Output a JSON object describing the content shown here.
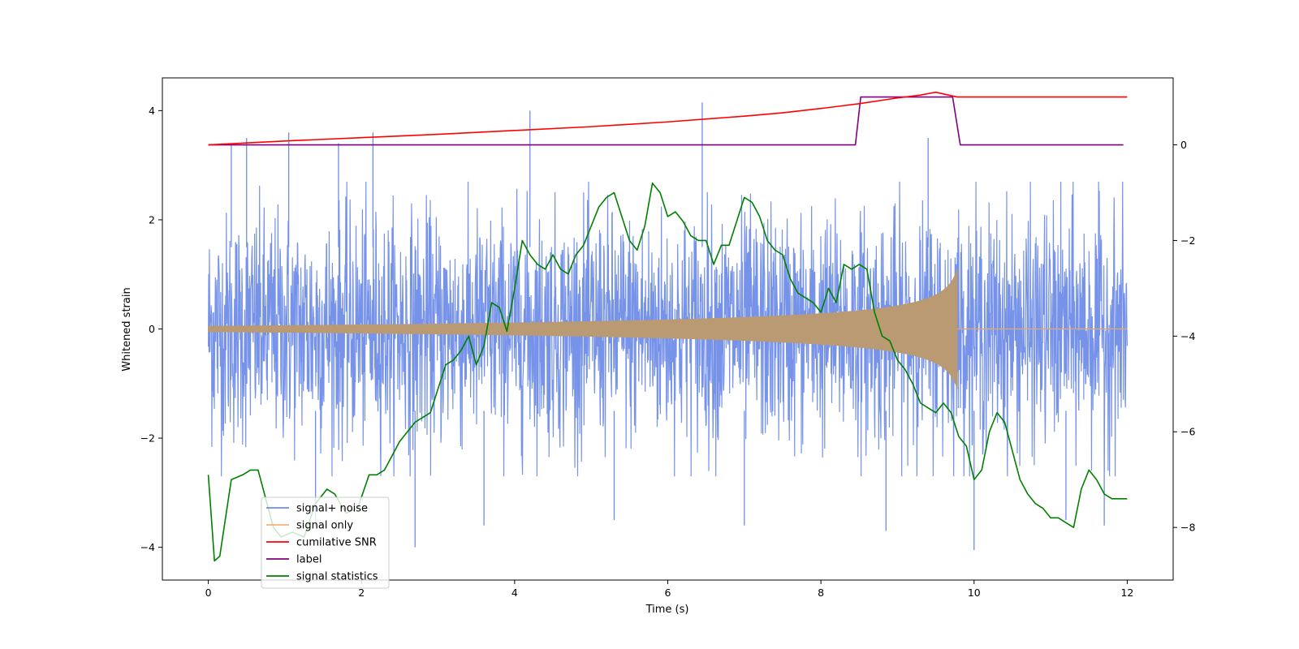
{
  "chart_data": {
    "type": "line",
    "title": "",
    "xlabel": "Time (s)",
    "ylabel": "Whitened strain",
    "y2label": "",
    "xlim": [
      -0.6,
      12.6
    ],
    "ylim": [
      -4.6,
      4.6
    ],
    "y2lim": [
      -9.1,
      1.4
    ],
    "xticks": [
      0,
      2,
      4,
      6,
      8,
      10,
      12
    ],
    "yticks": [
      -4,
      -2,
      0,
      2,
      4
    ],
    "y2ticks": [
      -8,
      -6,
      -4,
      -2,
      0
    ],
    "grid": false,
    "legend_position": "lower-left",
    "series": [
      {
        "name": "signal+ noise",
        "axis": "left",
        "color": "#6f8de8",
        "description": "dense noise band, roughly ±2.3 with spikes up to about ±4.1",
        "spikes": [
          {
            "x": 0.3,
            "y": 3.4
          },
          {
            "x": 0.5,
            "y": 3.5
          },
          {
            "x": 1.05,
            "y": 3.6
          },
          {
            "x": 1.7,
            "y": 3.4
          },
          {
            "x": 2.15,
            "y": 3.6
          },
          {
            "x": 4.2,
            "y": 4.0
          },
          {
            "x": 6.45,
            "y": 4.15
          },
          {
            "x": 9.4,
            "y": 3.5
          },
          {
            "x": 1.4,
            "y": -3.6
          },
          {
            "x": 2.7,
            "y": -4.0
          },
          {
            "x": 3.6,
            "y": -3.6
          },
          {
            "x": 5.3,
            "y": -3.5
          },
          {
            "x": 7.0,
            "y": -3.6
          },
          {
            "x": 8.85,
            "y": -3.7
          },
          {
            "x": 10.0,
            "y": -4.05
          },
          {
            "x": 11.2,
            "y": -3.5
          },
          {
            "x": 11.7,
            "y": -3.6
          }
        ]
      },
      {
        "name": "signal only",
        "axis": "left",
        "color": "#f5b27a",
        "description": "chirp: amplitude grows from about 0.05 at t=0 to about 1.1 at t=9.78, then zero",
        "chirp_end": 9.78,
        "amplitude_start": 0.05,
        "amplitude_peak": 1.1
      },
      {
        "name": "cumilative SNR",
        "axis": "right",
        "color": "#ff0000",
        "x": [
          0,
          1,
          2,
          3,
          4,
          5,
          6,
          7,
          7.5,
          8,
          8.5,
          9,
          9.3,
          9.5,
          9.78,
          12
        ],
        "values": [
          0,
          0.08,
          0.15,
          0.22,
          0.3,
          0.38,
          0.48,
          0.6,
          0.67,
          0.76,
          0.86,
          0.98,
          1.04,
          1.1,
          1.0,
          1.0
        ]
      },
      {
        "name": "label",
        "axis": "right",
        "color": "#800080",
        "x": [
          0,
          8.45,
          8.52,
          9.72,
          9.82,
          11.95
        ],
        "values": [
          0,
          0,
          1,
          1,
          0,
          0
        ]
      },
      {
        "name": "signal statistics",
        "axis": "right",
        "color": "#008000",
        "x": [
          0,
          0.08,
          0.15,
          0.3,
          0.45,
          0.55,
          0.65,
          0.75,
          0.85,
          0.95,
          1.1,
          1.25,
          1.4,
          1.5,
          1.55,
          1.65,
          1.8,
          1.95,
          2.1,
          2.2,
          2.3,
          2.4,
          2.5,
          2.6,
          2.7,
          2.8,
          2.9,
          3.0,
          3.1,
          3.2,
          3.3,
          3.4,
          3.5,
          3.6,
          3.7,
          3.8,
          3.9,
          4.0,
          4.1,
          4.2,
          4.3,
          4.4,
          4.5,
          4.6,
          4.7,
          4.8,
          4.9,
          5.0,
          5.1,
          5.2,
          5.3,
          5.4,
          5.5,
          5.6,
          5.7,
          5.8,
          5.9,
          6.0,
          6.1,
          6.2,
          6.3,
          6.4,
          6.5,
          6.6,
          6.7,
          6.8,
          6.9,
          7.0,
          7.1,
          7.2,
          7.3,
          7.4,
          7.5,
          7.6,
          7.7,
          7.8,
          7.9,
          8.0,
          8.1,
          8.2,
          8.3,
          8.4,
          8.5,
          8.6,
          8.7,
          8.8,
          8.9,
          9.0,
          9.1,
          9.2,
          9.3,
          9.4,
          9.5,
          9.6,
          9.7,
          9.8,
          9.9,
          10.0,
          10.1,
          10.2,
          10.3,
          10.4,
          10.5,
          10.6,
          10.7,
          10.8,
          10.9,
          11.0,
          11.1,
          11.2,
          11.3,
          11.4,
          11.5,
          11.6,
          11.7,
          11.8,
          11.9,
          12.0
        ],
        "values": [
          -6.9,
          -8.7,
          -8.6,
          -7.0,
          -6.9,
          -6.8,
          -6.8,
          -7.4,
          -8.0,
          -8.2,
          -8.1,
          -8.2,
          -7.5,
          -7.3,
          -7.2,
          -7.3,
          -7.7,
          -7.6,
          -6.9,
          -6.9,
          -6.8,
          -6.5,
          -6.2,
          -6.0,
          -5.8,
          -5.7,
          -5.6,
          -5.1,
          -4.6,
          -4.5,
          -4.3,
          -4.0,
          -4.6,
          -4.2,
          -3.3,
          -3.4,
          -3.9,
          -3.0,
          -2.0,
          -2.3,
          -2.5,
          -2.6,
          -2.3,
          -2.6,
          -2.7,
          -2.3,
          -2.1,
          -1.7,
          -1.3,
          -1.1,
          -1.0,
          -1.5,
          -2.0,
          -2.2,
          -1.7,
          -0.8,
          -1.0,
          -1.5,
          -1.4,
          -1.6,
          -1.9,
          -2.0,
          -2.0,
          -2.5,
          -2.1,
          -2.1,
          -1.6,
          -1.1,
          -1.2,
          -1.5,
          -2.0,
          -2.2,
          -2.3,
          -2.8,
          -3.1,
          -3.2,
          -3.3,
          -3.5,
          -3.0,
          -3.3,
          -2.5,
          -2.6,
          -2.5,
          -2.6,
          -3.5,
          -4.0,
          -4.1,
          -4.5,
          -4.7,
          -5.0,
          -5.4,
          -5.5,
          -5.6,
          -5.4,
          -5.6,
          -6.1,
          -6.3,
          -7.0,
          -6.8,
          -6.0,
          -5.6,
          -5.8,
          -6.4,
          -7.0,
          -7.3,
          -7.5,
          -7.6,
          -7.8,
          -7.8,
          -7.9,
          -8.0,
          -7.2,
          -6.8,
          -7.0,
          -7.3,
          -7.4,
          -7.4,
          -7.4
        ]
      }
    ]
  }
}
